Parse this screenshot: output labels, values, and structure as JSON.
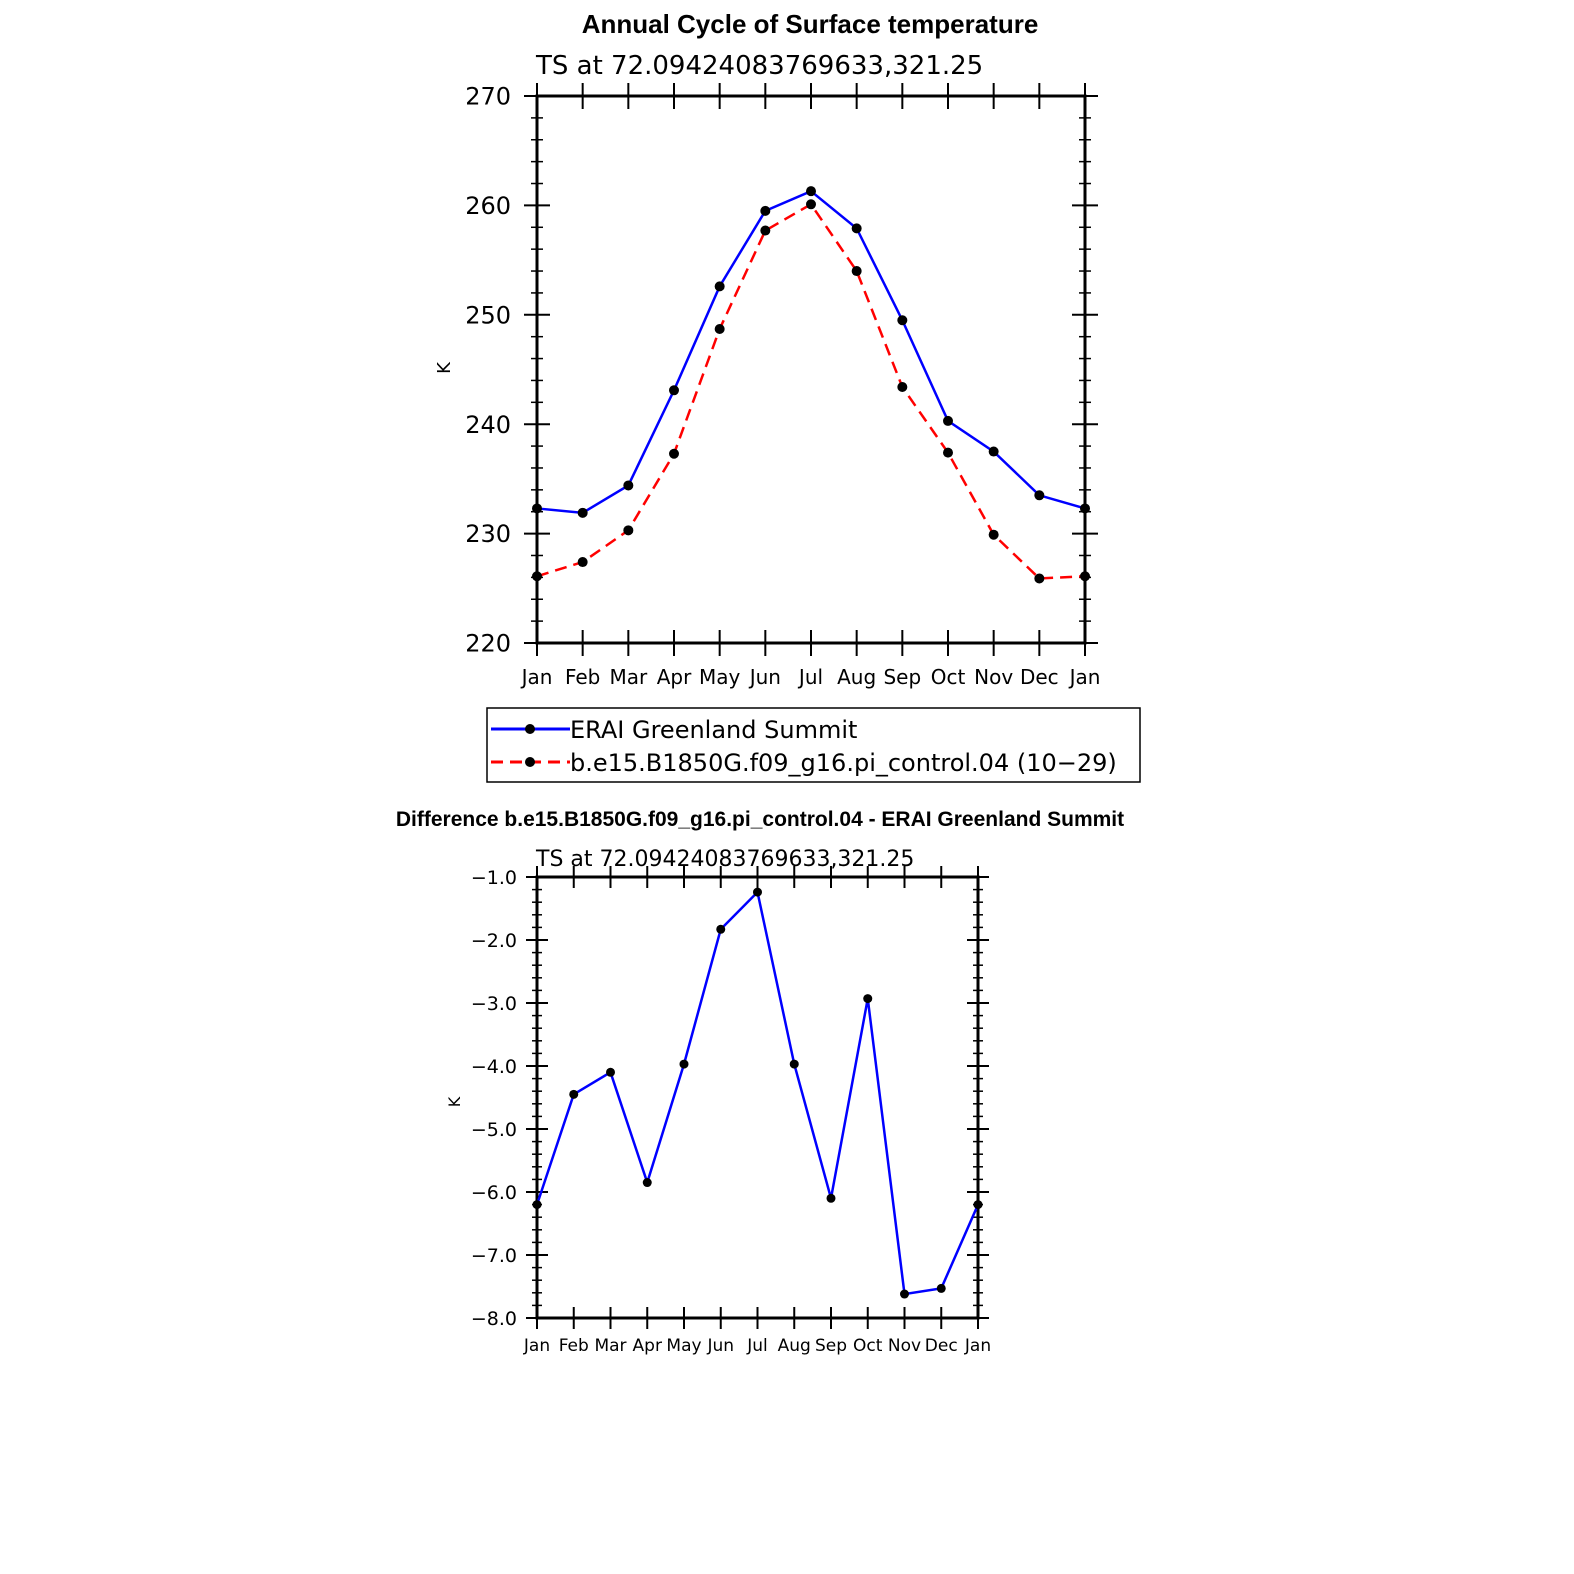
{
  "chart_data": [
    {
      "type": "line",
      "title": "Annual Cycle of Surface temperature",
      "subtitle": "TS at 72.09424083769633,321.25",
      "xlabel": "",
      "ylabel": "K",
      "categories": [
        "Jan",
        "Feb",
        "Mar",
        "Apr",
        "May",
        "Jun",
        "Jul",
        "Aug",
        "Sep",
        "Oct",
        "Nov",
        "Dec",
        "Jan"
      ],
      "ylim": [
        220,
        270
      ],
      "yticks": [
        "220",
        "230",
        "240",
        "250",
        "260",
        "270"
      ],
      "series": [
        {
          "name": "ERAI Greenland Summit",
          "color": "#0000ff",
          "dash": false,
          "values": [
            232.3,
            231.9,
            234.4,
            243.1,
            252.6,
            259.5,
            261.3,
            257.9,
            249.5,
            240.3,
            237.5,
            233.5,
            232.3
          ]
        },
        {
          "name": "b.e15.B1850G.f09_g16.pi_control.04 (10−29)",
          "color": "#ff0000",
          "dash": true,
          "values": [
            226.1,
            227.4,
            230.3,
            237.3,
            248.7,
            257.7,
            260.1,
            254.0,
            243.4,
            237.4,
            229.9,
            225.9,
            226.1
          ]
        }
      ],
      "legend_position": "below"
    },
    {
      "type": "line",
      "title": "Difference b.e15.B1850G.f09_g16.pi_control.04 - ERAI Greenland Summit",
      "subtitle": "TS at 72.09424083769633,321.25",
      "xlabel": "",
      "ylabel": "K",
      "categories": [
        "Jan",
        "Feb",
        "Mar",
        "Apr",
        "May",
        "Jun",
        "Jul",
        "Aug",
        "Sep",
        "Oct",
        "Nov",
        "Dec",
        "Jan"
      ],
      "ylim": [
        -8.0,
        -1.0
      ],
      "yticks": [
        "−8.0",
        "−7.0",
        "−6.0",
        "−5.0",
        "−4.0",
        "−3.0",
        "−2.0",
        "−1.0"
      ],
      "series": [
        {
          "color": "#0000ff",
          "dash": false,
          "values": [
            -6.2,
            -4.45,
            -4.1,
            -5.85,
            -3.97,
            -1.83,
            -1.24,
            -3.97,
            -6.1,
            -2.93,
            -7.62,
            -7.53,
            -6.2
          ]
        }
      ]
    }
  ]
}
